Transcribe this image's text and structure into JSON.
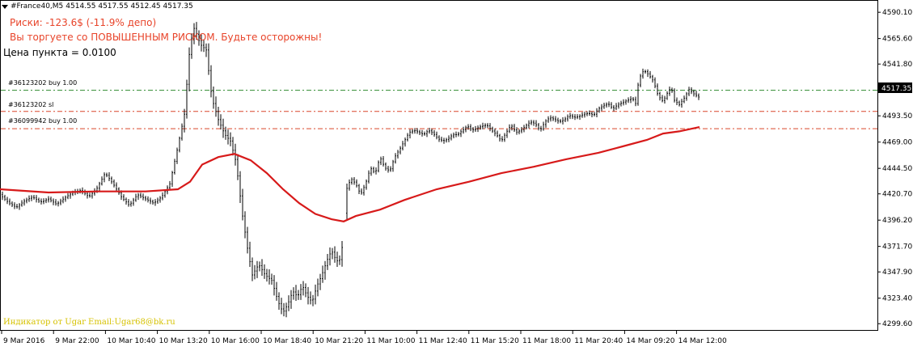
{
  "header": {
    "symbol": "#France40,M5",
    "ohlc": "4514.55 4517.55 4512.45 4517.35"
  },
  "info": {
    "risk": "Риски: -123.6$ (-11.9% депо)",
    "warning": "Вы торгуете со ПОВЫШЕННЫМ РИСКОМ. Будьте осторожны!",
    "point_price": "Цена пункта = 0.0100"
  },
  "orders": [
    {
      "label": "#36123202 buy 1.00",
      "price": 4517.35,
      "color": "#2e8b2e"
    },
    {
      "label": "#36123202 sl",
      "price": 4497.6,
      "color": "#d9472b"
    },
    {
      "label": "#36099942 buy 1.00",
      "price": 4481.5,
      "color": "#d9472b"
    }
  ],
  "watermark": "Индикатор от Ugar Email:Ugar68@bk.ru",
  "colors": {
    "bars": "#000000",
    "moving_average": "#d71a1a",
    "price_tag_bg": "#000000",
    "price_tag_text": "#ffffff"
  },
  "current_price_label": "4517.35",
  "chart_data": {
    "type": "ohlc",
    "timeframe": "M5",
    "ylim": [
      4296,
      4594
    ],
    "y_ticks": [
      "4590.10",
      "4565.60",
      "4541.80",
      "4517.35",
      "4493.50",
      "4469.00",
      "4444.50",
      "4420.70",
      "4396.20",
      "4371.70",
      "4347.90",
      "4323.40",
      "4299.60"
    ],
    "x_ticks": [
      "9 Mar 2016",
      "9 Mar 22:00",
      "10 Mar 10:40",
      "10 Mar 13:20",
      "10 Mar 16:00",
      "10 Mar 18:40",
      "10 Mar 21:20",
      "11 Mar 10:00",
      "11 Mar 12:40",
      "11 Mar 15:20",
      "11 Mar 18:00",
      "11 Mar 20:40",
      "14 Mar 09:20",
      "14 Mar 12:00"
    ],
    "close_path": [
      [
        0,
        4420
      ],
      [
        10,
        4413
      ],
      [
        20,
        4408
      ],
      [
        30,
        4414
      ],
      [
        40,
        4418
      ],
      [
        50,
        4413
      ],
      [
        60,
        4416
      ],
      [
        70,
        4411
      ],
      [
        80,
        4417
      ],
      [
        90,
        4422
      ],
      [
        100,
        4424
      ],
      [
        110,
        4418
      ],
      [
        120,
        4426
      ],
      [
        130,
        4440
      ],
      [
        140,
        4430
      ],
      [
        150,
        4418
      ],
      [
        160,
        4410
      ],
      [
        170,
        4420
      ],
      [
        180,
        4416
      ],
      [
        190,
        4412
      ],
      [
        200,
        4418
      ],
      [
        210,
        4430
      ],
      [
        220,
        4465
      ],
      [
        228,
        4495
      ],
      [
        235,
        4560
      ],
      [
        240,
        4575
      ],
      [
        248,
        4560
      ],
      [
        255,
        4555
      ],
      [
        262,
        4510
      ],
      [
        270,
        4490
      ],
      [
        278,
        4476
      ],
      [
        285,
        4470
      ],
      [
        292,
        4450
      ],
      [
        300,
        4400
      ],
      [
        306,
        4370
      ],
      [
        312,
        4345
      ],
      [
        320,
        4355
      ],
      [
        328,
        4345
      ],
      [
        336,
        4340
      ],
      [
        344,
        4320
      ],
      [
        350,
        4310
      ],
      [
        356,
        4318
      ],
      [
        362,
        4330
      ],
      [
        368,
        4325
      ],
      [
        374,
        4335
      ],
      [
        380,
        4325
      ],
      [
        386,
        4320
      ],
      [
        392,
        4335
      ],
      [
        398,
        4345
      ],
      [
        404,
        4358
      ],
      [
        410,
        4368
      ],
      [
        416,
        4358
      ],
      [
        422,
        4360
      ],
      [
        428,
        4424
      ],
      [
        434,
        4435
      ],
      [
        440,
        4430
      ],
      [
        446,
        4420
      ],
      [
        452,
        4430
      ],
      [
        458,
        4445
      ],
      [
        464,
        4440
      ],
      [
        470,
        4455
      ],
      [
        476,
        4445
      ],
      [
        482,
        4442
      ],
      [
        488,
        4455
      ],
      [
        494,
        4462
      ],
      [
        500,
        4470
      ],
      [
        506,
        4478
      ],
      [
        512,
        4480
      ],
      [
        518,
        4478
      ],
      [
        524,
        4476
      ],
      [
        530,
        4480
      ],
      [
        536,
        4477
      ],
      [
        542,
        4472
      ],
      [
        548,
        4470
      ],
      [
        554,
        4472
      ],
      [
        560,
        4476
      ],
      [
        566,
        4476
      ],
      [
        572,
        4480
      ],
      [
        578,
        4484
      ],
      [
        584,
        4480
      ],
      [
        590,
        4482
      ],
      [
        596,
        4484
      ],
      [
        602,
        4485
      ],
      [
        608,
        4480
      ],
      [
        614,
        4476
      ],
      [
        620,
        4470
      ],
      [
        626,
        4478
      ],
      [
        632,
        4485
      ],
      [
        638,
        4478
      ],
      [
        644,
        4480
      ],
      [
        650,
        4484
      ],
      [
        656,
        4488
      ],
      [
        662,
        4486
      ],
      [
        668,
        4480
      ],
      [
        674,
        4488
      ],
      [
        680,
        4492
      ],
      [
        686,
        4490
      ],
      [
        692,
        4488
      ],
      [
        698,
        4490
      ],
      [
        704,
        4494
      ],
      [
        710,
        4492
      ],
      [
        716,
        4493
      ],
      [
        722,
        4495
      ],
      [
        728,
        4496
      ],
      [
        734,
        4494
      ],
      [
        740,
        4500
      ],
      [
        746,
        4503
      ],
      [
        752,
        4505
      ],
      [
        758,
        4500
      ],
      [
        764,
        4504
      ],
      [
        770,
        4506
      ],
      [
        776,
        4508
      ],
      [
        782,
        4510
      ],
      [
        786,
        4505
      ],
      [
        790,
        4528
      ],
      [
        796,
        4536
      ],
      [
        802,
        4532
      ],
      [
        808,
        4526
      ],
      [
        814,
        4512
      ],
      [
        820,
        4507
      ],
      [
        826,
        4516
      ],
      [
        830,
        4520
      ],
      [
        834,
        4508
      ],
      [
        840,
        4504
      ],
      [
        846,
        4510
      ],
      [
        852,
        4518
      ],
      [
        858,
        4514
      ],
      [
        864,
        4511
      ]
    ],
    "ma_path": [
      [
        0,
        4425
      ],
      [
        60,
        4422
      ],
      [
        120,
        4423
      ],
      [
        180,
        4423
      ],
      [
        220,
        4425
      ],
      [
        235,
        4432
      ],
      [
        250,
        4448
      ],
      [
        270,
        4455
      ],
      [
        290,
        4458
      ],
      [
        310,
        4452
      ],
      [
        330,
        4440
      ],
      [
        350,
        4425
      ],
      [
        370,
        4412
      ],
      [
        390,
        4402
      ],
      [
        410,
        4397
      ],
      [
        425,
        4395
      ],
      [
        440,
        4400
      ],
      [
        470,
        4406
      ],
      [
        500,
        4415
      ],
      [
        540,
        4425
      ],
      [
        580,
        4432
      ],
      [
        620,
        4440
      ],
      [
        660,
        4446
      ],
      [
        700,
        4453
      ],
      [
        740,
        4459
      ],
      [
        770,
        4465
      ],
      [
        800,
        4471
      ],
      [
        820,
        4477
      ],
      [
        840,
        4479
      ],
      [
        865,
        4483
      ]
    ]
  }
}
